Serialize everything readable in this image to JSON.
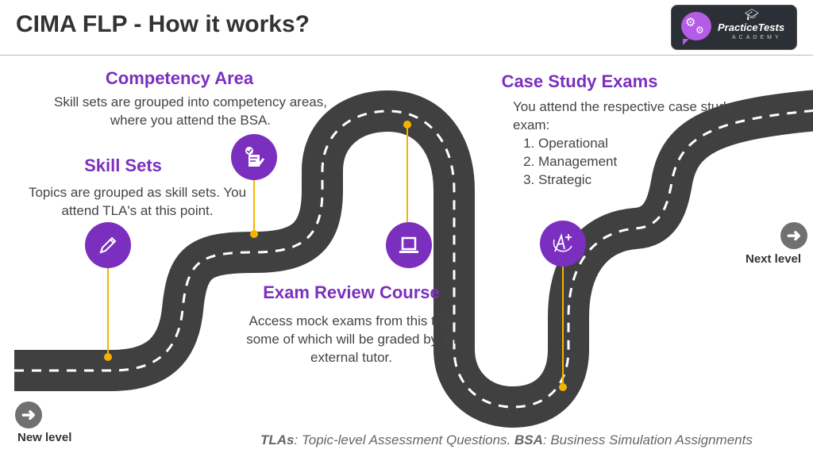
{
  "header": {
    "title": "CIMA FLP - How it works?",
    "logo_text": "PracticeTests",
    "logo_sub": "ACADEMY"
  },
  "colors": {
    "accent": "#7b2fbf",
    "road": "#404040",
    "connector": "#f5b301",
    "arrow": "#6f7171"
  },
  "steps": [
    {
      "heading": "Skill Sets",
      "text": "Topics are grouped as skill sets. You attend TLA's at this point.",
      "icon": "pencil-icon"
    },
    {
      "heading": "Competency Area",
      "text": "Skill sets are grouped into competency areas, where you attend the BSA.",
      "icon": "checklist-document-icon"
    },
    {
      "heading": "Exam Review Course",
      "text": "Access mock exams from this tab, some of which will be graded by an external tutor.",
      "icon": "laptop-icon"
    },
    {
      "heading": "Case Study Exams",
      "text": "You attend the respective case study exam:",
      "items": [
        "Operational",
        "Management",
        "Strategic"
      ],
      "icon": "a-plus-grade-icon"
    }
  ],
  "nav": {
    "start_label": "New level",
    "end_label": "Next level"
  },
  "footnote": {
    "term1": "TLAs",
    "def1": ": Topic-level Assessment Questions. ",
    "term2": "BSA",
    "def2": ": Business Simulation Assignments"
  }
}
